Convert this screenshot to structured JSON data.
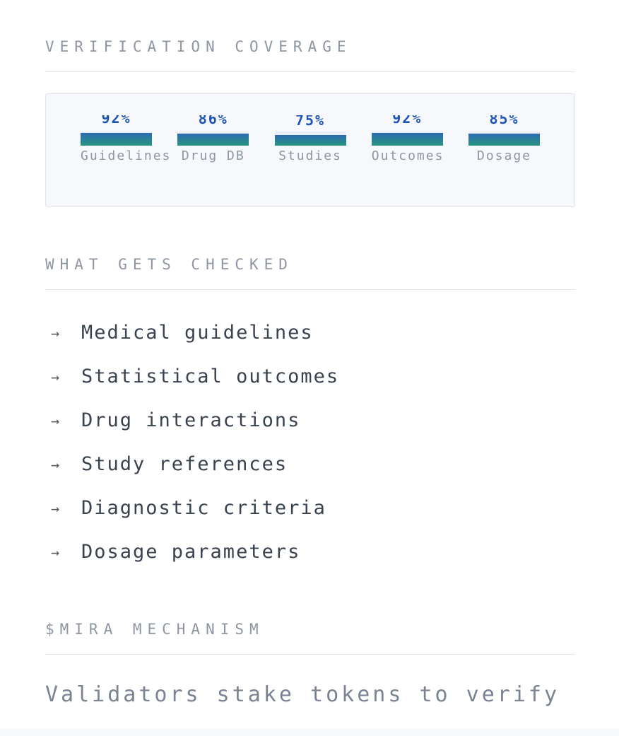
{
  "coverage_section": {
    "heading": "VERIFICATION COVERAGE"
  },
  "chart_data": {
    "type": "bar",
    "orientation": "column",
    "categories": [
      "Guidelines",
      "Drug DB",
      "Studies",
      "Outcomes",
      "Dosage"
    ],
    "values": [
      92,
      86,
      75,
      92,
      85
    ],
    "value_labels": [
      "92%",
      "86%",
      "75%",
      "92%",
      "85%"
    ],
    "unit": "%",
    "ylim": [
      0,
      100
    ],
    "grid": false,
    "legend": false,
    "style": {
      "bar_gradient_top": "#2c6bb3",
      "bar_gradient_bottom": "#27957e",
      "track_color": "#e8edf8",
      "value_color": "#1d54b8",
      "label_color": "#8d96a3",
      "panel_background": "#f7f8fb",
      "panel_border": "#e1e4ea"
    }
  },
  "checked_section": {
    "heading": "WHAT GETS CHECKED",
    "bullet": "→",
    "items": [
      "Medical guidelines",
      "Statistical outcomes",
      "Drug interactions",
      "Study references",
      "Diagnostic criteria",
      "Dosage parameters"
    ]
  },
  "mira_section": {
    "heading": "$MIRA MECHANISM",
    "body": "Validators stake tokens to verify"
  }
}
